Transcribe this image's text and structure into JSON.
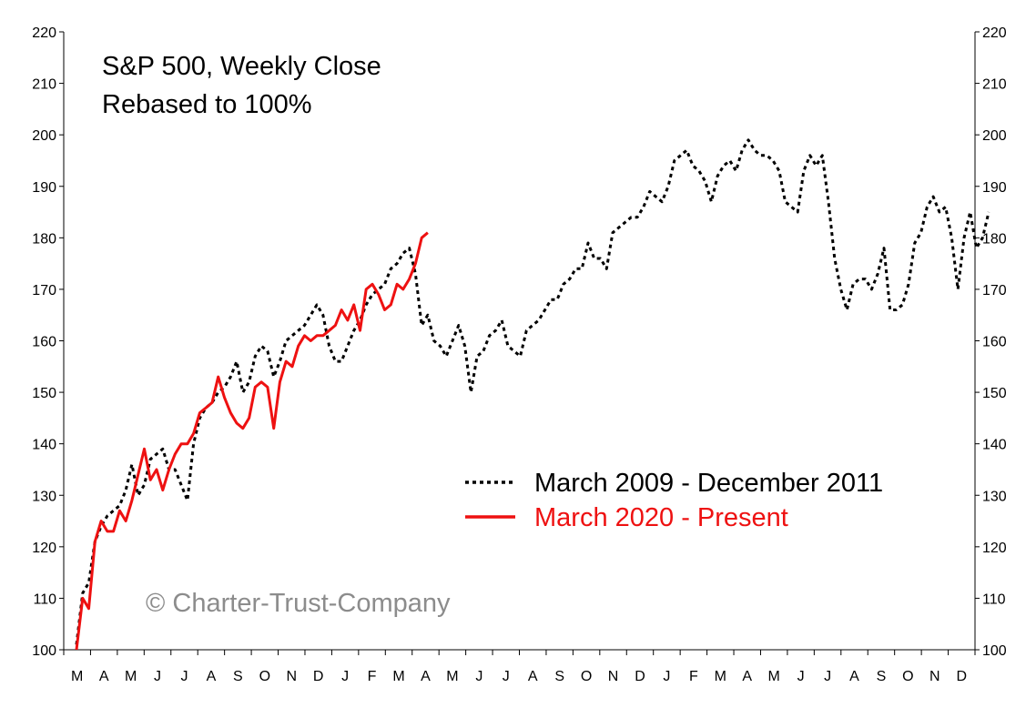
{
  "chart_data": {
    "type": "line",
    "title_lines": [
      "S&P 500, Weekly Close",
      "Rebased to 100%"
    ],
    "ylim": [
      100,
      220
    ],
    "yticks": [
      100,
      110,
      120,
      130,
      140,
      150,
      160,
      170,
      180,
      190,
      200,
      210,
      220
    ],
    "month_labels": [
      "M",
      "A",
      "M",
      "J",
      "J",
      "A",
      "S",
      "O",
      "N",
      "D",
      "J",
      "F",
      "M",
      "A",
      "M",
      "J",
      "J",
      "A",
      "S",
      "O",
      "N",
      "D",
      "J",
      "F",
      "M",
      "A",
      "M",
      "J",
      "J",
      "A",
      "S",
      "O",
      "N",
      "D"
    ],
    "grid": false,
    "legend_position": "center-right",
    "watermark": "© Charter-Trust-Company",
    "series": [
      {
        "name": "March 2009 - December 2011",
        "color": "#000000",
        "style": "dotted",
        "values": [
          101,
          111,
          113,
          121,
          124,
          126,
          127,
          128,
          131,
          136,
          130,
          132,
          137,
          138,
          139,
          135,
          135,
          132,
          129,
          140,
          145,
          147,
          148,
          150,
          151,
          153,
          156,
          150,
          152,
          157,
          159,
          158,
          153,
          156,
          160,
          161,
          162,
          163,
          165,
          167,
          165,
          159,
          156,
          156,
          159,
          162,
          164,
          167,
          169,
          170,
          171,
          174,
          175,
          177,
          178,
          173,
          163,
          165,
          160,
          159,
          157,
          160,
          163,
          159,
          150,
          157,
          158,
          161,
          162,
          164,
          159,
          158,
          157,
          162,
          163,
          164,
          166,
          168,
          168,
          171,
          172,
          174,
          174,
          179,
          176,
          176,
          174,
          181,
          182,
          183,
          184,
          184,
          186,
          189,
          188,
          187,
          190,
          195,
          196,
          197,
          194,
          193,
          191,
          187,
          192,
          194,
          195,
          193,
          197,
          199,
          197,
          196,
          196,
          195,
          193,
          187,
          186,
          185,
          193,
          196,
          194,
          196,
          187,
          176,
          170,
          166,
          171,
          172,
          172,
          170,
          173,
          178,
          166,
          166,
          167,
          171,
          179,
          181,
          186,
          188,
          185,
          186,
          180,
          170,
          180,
          185,
          178,
          180,
          185
        ]
      },
      {
        "name": "March 2020 - Present",
        "color": "#ee1111",
        "style": "solid",
        "values": [
          100,
          110,
          108,
          121,
          125,
          123,
          123,
          127,
          125,
          129,
          134,
          139,
          133,
          135,
          131,
          135,
          138,
          140,
          140,
          142,
          146,
          147,
          148,
          153,
          149,
          146,
          144,
          143,
          145,
          151,
          152,
          151,
          143,
          152,
          156,
          155,
          159,
          161,
          160,
          161,
          161,
          162,
          163,
          166,
          164,
          167,
          162,
          170,
          171,
          169,
          166,
          167,
          171,
          170,
          172,
          175,
          180,
          181
        ]
      }
    ]
  }
}
